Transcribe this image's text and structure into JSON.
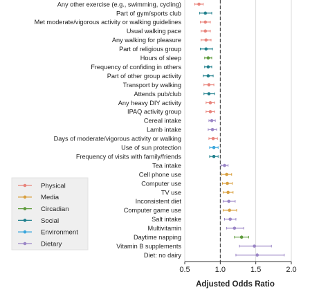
{
  "chart_data": {
    "type": "forest",
    "xlabel": "Adjusted Odds Ratio",
    "xlim": [
      0.5,
      2.0
    ],
    "xticks": [
      0.5,
      1.0,
      1.5,
      2.0
    ],
    "xtick_labels": [
      "0.5",
      "1.0",
      "1.5",
      "2.0"
    ],
    "reference_line": 1.0,
    "grid": "vertical",
    "legend": {
      "placement": "bottom-left",
      "entries": [
        {
          "label": "Physical",
          "color": "#e8837b"
        },
        {
          "label": "Media",
          "color": "#d9a03f"
        },
        {
          "label": "Circadian",
          "color": "#5e9b3c"
        },
        {
          "label": "Social",
          "color": "#1f7f8c"
        },
        {
          "label": "Environment",
          "color": "#3aa6dc"
        },
        {
          "label": "Dietary",
          "color": "#9b86c6"
        }
      ]
    },
    "rows": [
      {
        "label": "Any other exercise (e.g., swimming, cycling)",
        "category": "Physical",
        "or": 0.7,
        "lo": 0.64,
        "hi": 0.76
      },
      {
        "label": "Part of gym/sports club",
        "category": "Social",
        "or": 0.79,
        "lo": 0.71,
        "hi": 0.88
      },
      {
        "label": "Met moderate/vigorous activity or walking guidelines",
        "category": "Physical",
        "or": 0.79,
        "lo": 0.72,
        "hi": 0.86
      },
      {
        "label": "Usual walking pace",
        "category": "Physical",
        "or": 0.79,
        "lo": 0.73,
        "hi": 0.86
      },
      {
        "label": "Any walking for pleasure",
        "category": "Physical",
        "or": 0.8,
        "lo": 0.73,
        "hi": 0.87
      },
      {
        "label": "Part of religious group",
        "category": "Social",
        "or": 0.8,
        "lo": 0.72,
        "hi": 0.89
      },
      {
        "label": "Hours of sleep",
        "category": "Circadian",
        "or": 0.83,
        "lo": 0.78,
        "hi": 0.88
      },
      {
        "label": "Frequency of confiding in others",
        "category": "Social",
        "or": 0.83,
        "lo": 0.78,
        "hi": 0.88
      },
      {
        "label": "Part of other group activity",
        "category": "Social",
        "or": 0.83,
        "lo": 0.76,
        "hi": 0.9
      },
      {
        "label": "Transport by walking",
        "category": "Physical",
        "or": 0.84,
        "lo": 0.77,
        "hi": 0.91
      },
      {
        "label": "Attends pub/club",
        "category": "Social",
        "or": 0.84,
        "lo": 0.77,
        "hi": 0.92
      },
      {
        "label": "Any heavy DIY activity",
        "category": "Physical",
        "or": 0.86,
        "lo": 0.8,
        "hi": 0.92
      },
      {
        "label": "IPAQ activity group",
        "category": "Physical",
        "or": 0.86,
        "lo": 0.8,
        "hi": 0.92
      },
      {
        "label": "Cereal intake",
        "category": "Dietary",
        "or": 0.88,
        "lo": 0.84,
        "hi": 0.93
      },
      {
        "label": "Lamb intake",
        "category": "Dietary",
        "or": 0.89,
        "lo": 0.83,
        "hi": 0.95
      },
      {
        "label": "Days of moderate/vigorous activity or walking",
        "category": "Physical",
        "or": 0.9,
        "lo": 0.84,
        "hi": 0.96
      },
      {
        "label": "Use of sun protection",
        "category": "Environment",
        "or": 0.91,
        "lo": 0.85,
        "hi": 0.97
      },
      {
        "label": "Frequency of visits with family/friends",
        "category": "Social",
        "or": 0.91,
        "lo": 0.85,
        "hi": 0.97
      },
      {
        "label": "Tea intake",
        "category": "Dietary",
        "or": 1.06,
        "lo": 1.01,
        "hi": 1.11
      },
      {
        "label": "Cell phone use",
        "category": "Media",
        "or": 1.09,
        "lo": 1.02,
        "hi": 1.16
      },
      {
        "label": "Computer use",
        "category": "Media",
        "or": 1.1,
        "lo": 1.03,
        "hi": 1.17
      },
      {
        "label": "TV use",
        "category": "Media",
        "or": 1.11,
        "lo": 1.04,
        "hi": 1.18
      },
      {
        "label": "Inconsistent diet",
        "category": "Dietary",
        "or": 1.12,
        "lo": 1.04,
        "hi": 1.21
      },
      {
        "label": "Computer game use",
        "category": "Media",
        "or": 1.13,
        "lo": 1.04,
        "hi": 1.23
      },
      {
        "label": "Salt intake",
        "category": "Dietary",
        "or": 1.14,
        "lo": 1.06,
        "hi": 1.22
      },
      {
        "label": "Multivitamin",
        "category": "Dietary",
        "or": 1.2,
        "lo": 1.09,
        "hi": 1.33
      },
      {
        "label": "Daytime napping",
        "category": "Circadian",
        "or": 1.3,
        "lo": 1.2,
        "hi": 1.4
      },
      {
        "label": "Vitamin B supplements",
        "category": "Dietary",
        "or": 1.48,
        "lo": 1.27,
        "hi": 1.72
      },
      {
        "label": "Diet: no dairy",
        "category": "Dietary",
        "or": 1.52,
        "lo": 1.22,
        "hi": 1.9
      }
    ]
  }
}
